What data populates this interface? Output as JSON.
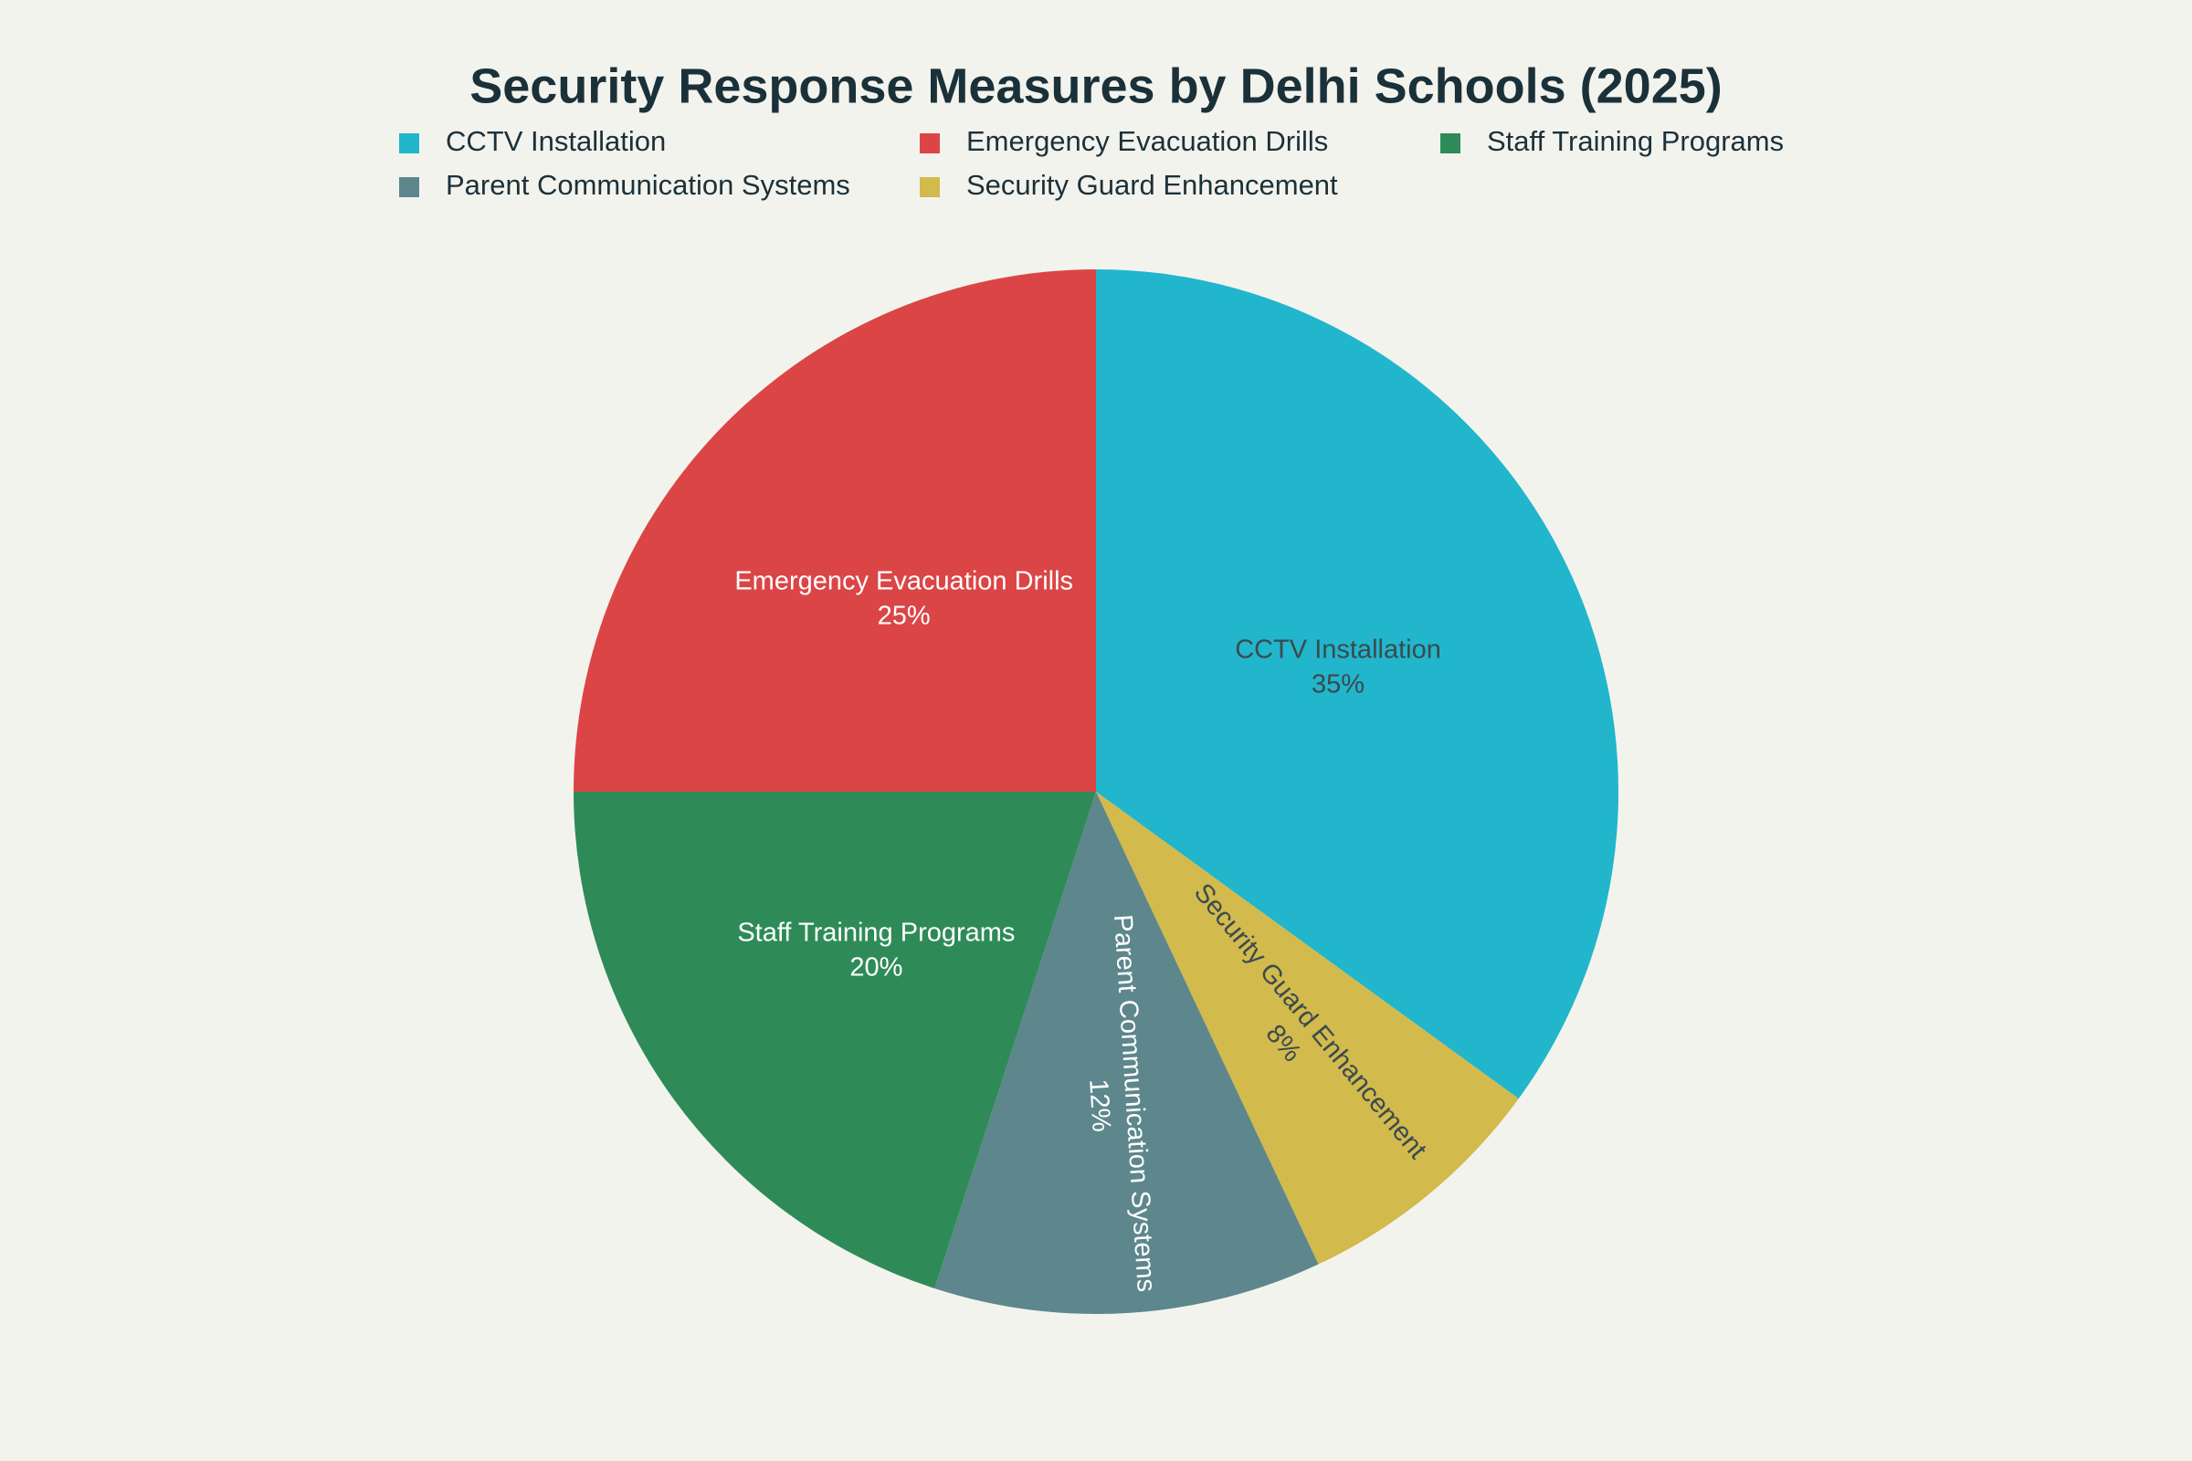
{
  "chart_data": {
    "type": "pie",
    "title": "Security Response Measures by Delhi Schools (2025)",
    "categories": [
      "CCTV Installation",
      "Emergency Evacuation Drills",
      "Staff Training Programs",
      "Parent Communication Systems",
      "Security Guard Enhancement"
    ],
    "values": [
      35,
      25,
      20,
      12,
      8
    ],
    "value_labels": [
      "35%",
      "25%",
      "20%",
      "12%",
      "8%"
    ],
    "colors": [
      "#21b6cc",
      "#db4546",
      "#2e8b57",
      "#5d878c",
      "#d2ba4c"
    ],
    "legend": "top"
  }
}
